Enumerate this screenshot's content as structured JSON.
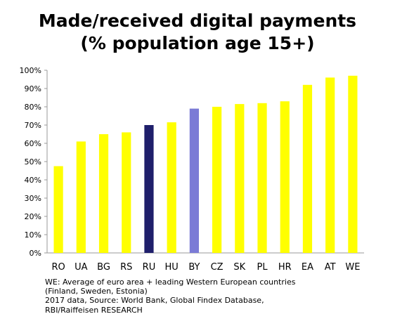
{
  "chart_data": {
    "type": "bar",
    "title_lines": [
      "Made/received digital payments",
      "(% population age 15+)"
    ],
    "categories": [
      "RO",
      "UA",
      "BG",
      "RS",
      "RU",
      "HU",
      "BY",
      "CZ",
      "SK",
      "PL",
      "HR",
      "EA",
      "AT",
      "WE"
    ],
    "values": [
      47.5,
      61,
      65,
      66,
      70,
      71.5,
      79,
      80,
      81.5,
      82,
      83,
      92,
      96,
      97
    ],
    "bar_colors": [
      "#ffff00",
      "#ffff00",
      "#ffff00",
      "#ffff00",
      "#1f1f6b",
      "#ffff00",
      "#7b7bd6",
      "#ffff00",
      "#ffff00",
      "#ffff00",
      "#ffff00",
      "#ffff00",
      "#ffff00",
      "#ffff00"
    ],
    "ylim": [
      0,
      100
    ],
    "yticks": [
      0,
      10,
      20,
      30,
      40,
      50,
      60,
      70,
      80,
      90,
      100
    ],
    "yticks_labels": [
      "0%",
      "10%",
      "20%",
      "30%",
      "40%",
      "50%",
      "60%",
      "70%",
      "80%",
      "90%",
      "100%"
    ],
    "grid": false,
    "legend": "none"
  },
  "notes": [
    "WE: Average of euro area + leading Western European countries",
    "(Finland, Sweden, Estonia)",
    "2017 data, Source: World Bank, Global Findex Database,",
    "RBI/Raiffeisen RESEARCH"
  ],
  "colors": {
    "axis": "#999999",
    "default_bar": "#ffff00"
  }
}
